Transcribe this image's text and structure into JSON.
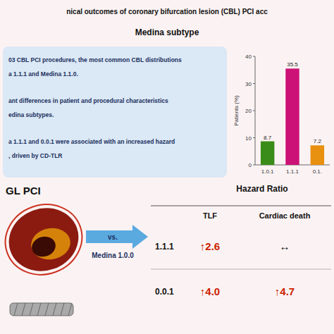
{
  "chart_data": {
    "type": "bar",
    "title": "nical outcomes of coronary bifurcation lesion (CBL) PCI acc",
    "subtitle": "Medina subtype",
    "categories": [
      "1.0.1",
      "1.1.1",
      "0.1."
    ],
    "values": [
      8.7,
      35.5,
      7.2
    ],
    "colors": [
      "#3a8c1a",
      "#cc1177",
      "#e89010"
    ],
    "ylabel": "Patients (%)",
    "ylim": [
      0,
      40
    ],
    "yticks": [
      0,
      10,
      20,
      30,
      40
    ],
    "data_labels": true,
    "annotations": {
      "bullets": [
        [
          "03 CBL PCI procedures, the most common CBL distributions",
          "a 1.1.1 and Medina 1.1.0."
        ],
        [
          "ant differences in patient and procedural characteristics",
          "edina subtypes."
        ],
        [
          "a 1.1.1 and 0.0.1 were associated with an increased hazard",
          ", driven by CD-TLR"
        ]
      ],
      "section_label": "GL PCI",
      "arrow_text": [
        "vs.",
        "Medina 1.0.0"
      ]
    },
    "table": {
      "header": "Hazard Ratio",
      "columns": [
        "TLF",
        "Cardiac death"
      ],
      "rows": [
        {
          "label": "1.1.1",
          "cells": [
            {
              "text": "↑2.6",
              "color": "#cc2200"
            },
            {
              "text": "↔"
            }
          ]
        },
        {
          "label": "0.0.1",
          "cells": [
            {
              "text": "↑4.0",
              "color": "#cc2200"
            },
            {
              "text": "↑4.7",
              "color": "#cc2200"
            }
          ]
        }
      ]
    }
  }
}
